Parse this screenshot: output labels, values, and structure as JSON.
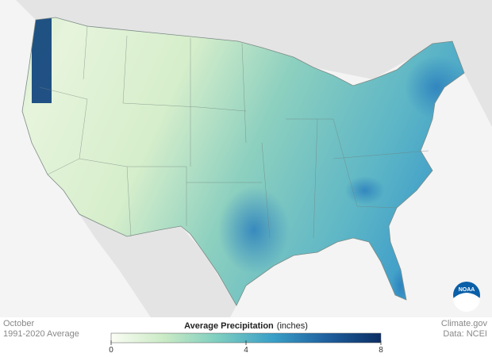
{
  "map": {
    "month": "October",
    "period": "1991-2020 Average",
    "logo": "NOAA"
  },
  "legend": {
    "title": "Average Precipitation",
    "unit": "(inches)",
    "range": [
      0,
      8
    ],
    "ticks": [
      0,
      4,
      8
    ],
    "colors": [
      "#fbfdf4",
      "#c9eac4",
      "#7ccdc0",
      "#3a9fc7",
      "#1f5f9e",
      "#0b2e63"
    ]
  },
  "credits": {
    "source": "Climate.gov",
    "data": "Data: NCEI"
  }
}
